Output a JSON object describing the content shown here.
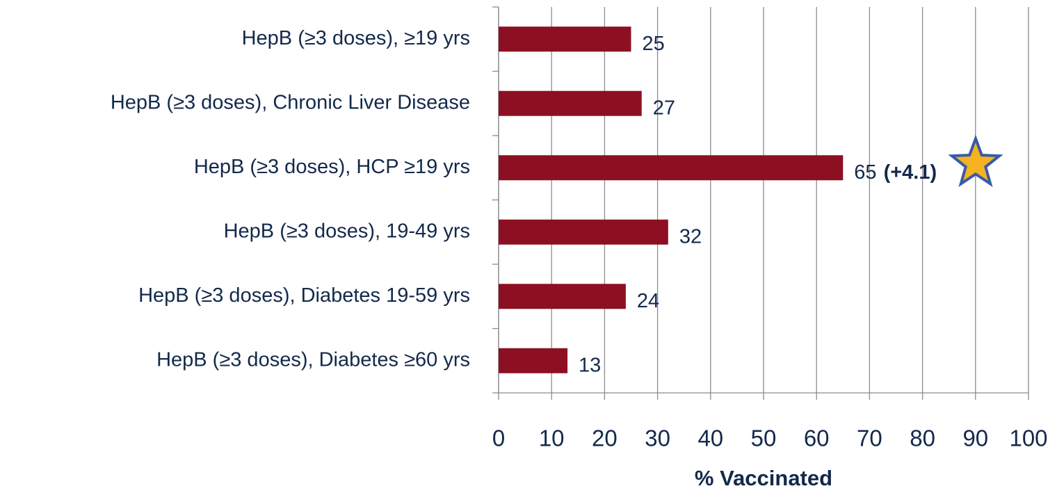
{
  "chart_data": {
    "type": "barh",
    "categories": [
      "HepB (≥3 doses), ≥19 yrs",
      "HepB (≥3 doses), Chronic Liver Disease",
      "HepB (≥3 doses), HCP ≥19 yrs",
      "HepB (≥3 doses), 19-49 yrs",
      "HepB (≥3 doses), Diabetes 19-59 yrs",
      "HepB (≥3 doses), Diabetes ≥60 yrs"
    ],
    "values": [
      25,
      27,
      65,
      32,
      24,
      13
    ],
    "color": "#8c1022",
    "annotation": "(+4.1)",
    "xlabel": "% Vaccinated",
    "xlim": [
      0,
      100
    ],
    "xticks": [
      0,
      10,
      20,
      30,
      40,
      50,
      60,
      70,
      80,
      90,
      100
    ],
    "grid": true
  }
}
